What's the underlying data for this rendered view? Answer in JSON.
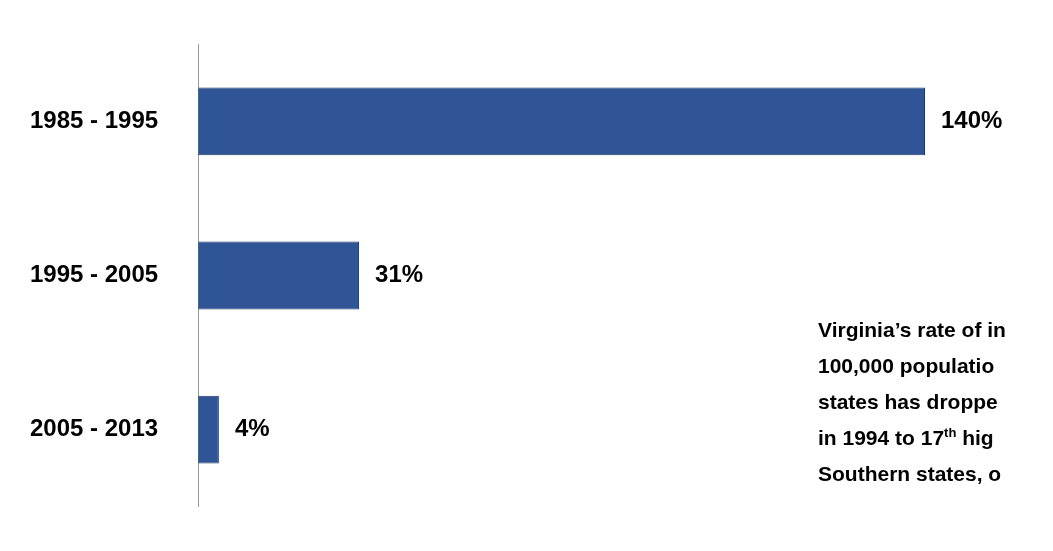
{
  "chart_data": {
    "type": "bar",
    "orientation": "horizontal",
    "categories": [
      "1985 - 1995",
      "1995 - 2005",
      "2005 - 2013"
    ],
    "values": [
      140,
      31,
      4
    ],
    "value_labels": [
      "140%",
      "31%",
      "4%"
    ],
    "color": "#2f5597",
    "grid": false,
    "legend": false,
    "tick_labels": "y",
    "annotations": [
      "Virginia’s rate of in\n100,000 populatio\nstates has droppe\nin 1994 to 17$^{th}$ hig\nSouthern states, o"
    ]
  }
}
